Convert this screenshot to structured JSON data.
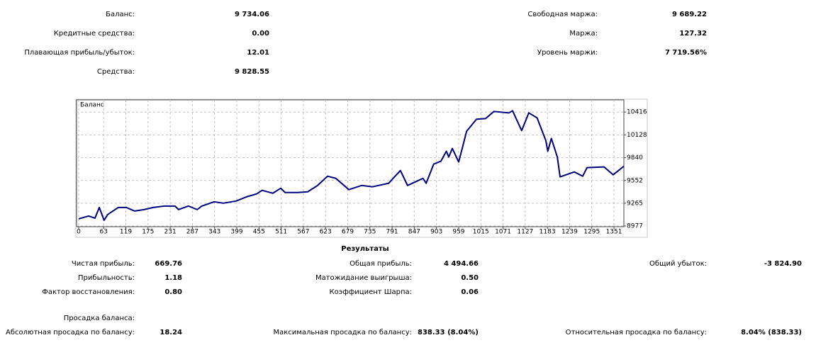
{
  "summary": {
    "left": [
      {
        "label": "Баланс:",
        "value": "9 734.06"
      },
      {
        "label": "Кредитные средства:",
        "value": "0.00"
      },
      {
        "label": "Плавающая прибыль/убыток:",
        "value": "12.01"
      },
      {
        "label": "Средства:",
        "value": "9 828.55"
      }
    ],
    "right": [
      {
        "label": "Свободная маржа:",
        "value": "9 689.22"
      },
      {
        "label": "Маржа:",
        "value": "127.32"
      },
      {
        "label": "Уровень маржи:",
        "value": "7 719.56%"
      }
    ]
  },
  "chart_data": {
    "type": "line",
    "title": "Баланс",
    "x": [
      0,
      25,
      41,
      52,
      64,
      73,
      100,
      120,
      141,
      165,
      188,
      216,
      243,
      252,
      277,
      299,
      311,
      342,
      365,
      397,
      424,
      449,
      463,
      490,
      510,
      521,
      553,
      578,
      603,
      628,
      649,
      682,
      714,
      741,
      782,
      812,
      830,
      869,
      877,
      896,
      914,
      928,
      934,
      943,
      959,
      968,
      979,
      1004,
      1027,
      1048,
      1086,
      1095,
      1118,
      1136,
      1157,
      1179,
      1184,
      1193,
      1208,
      1215,
      1251,
      1272,
      1283,
      1326,
      1349,
      1376
    ],
    "series": [
      {
        "name": "Баланс",
        "color": "#000080",
        "values": [
          9067,
          9103,
          9076,
          9211,
          9049,
          9121,
          9211,
          9211,
          9166,
          9184,
          9211,
          9229,
          9229,
          9184,
          9229,
          9184,
          9229,
          9283,
          9265,
          9292,
          9346,
          9382,
          9427,
          9391,
          9454,
          9400,
          9400,
          9409,
          9489,
          9606,
          9579,
          9436,
          9489,
          9472,
          9516,
          9678,
          9489,
          9579,
          9516,
          9759,
          9795,
          9921,
          9849,
          9957,
          9786,
          9957,
          10173,
          10326,
          10334,
          10424,
          10406,
          10433,
          10182,
          10406,
          10343,
          10056,
          9921,
          10083,
          9849,
          9597,
          9660,
          9606,
          9714,
          9723,
          9624,
          9732
        ]
      }
    ],
    "xlim": [
      0,
      1376
    ],
    "ylim": [
      8977,
      10570
    ],
    "xticks": [
      0,
      63,
      119,
      175,
      231,
      287,
      343,
      399,
      455,
      511,
      567,
      623,
      679,
      735,
      791,
      847,
      903,
      959,
      1015,
      1071,
      1127,
      1183,
      1239,
      1295,
      1351
    ],
    "yticks": [
      8977,
      9265,
      9552,
      9840,
      10128,
      10416
    ],
    "grid": true
  },
  "results": {
    "title": "Результаты",
    "rows": [
      [
        {
          "label": "Чистая прибыль:",
          "value": "669.76"
        },
        {
          "label": "Общая прибыль:",
          "value": "4 494.66"
        },
        {
          "label": "Общий убыток:",
          "value": "-3 824.90"
        }
      ],
      [
        {
          "label": "Прибыльность:",
          "value": "1.18"
        },
        {
          "label": "Матожидание выигрыша:",
          "value": "0.50"
        }
      ],
      [
        {
          "label": "Фактор восстановления:",
          "value": "0.80"
        },
        {
          "label": "Коэффициент Шарпа:",
          "value": "0.06"
        }
      ]
    ],
    "drawdown_title": "Просадка баланса:",
    "drawdown": [
      {
        "label": "Абсолютная просадка по балансу:",
        "value": "18.24"
      },
      {
        "label": "Максимальная просадка по балансу:",
        "value": "838.33 (8.04%)"
      },
      {
        "label": "Относительная просадка по балансу:",
        "value": "8.04% (838.33)"
      }
    ]
  }
}
